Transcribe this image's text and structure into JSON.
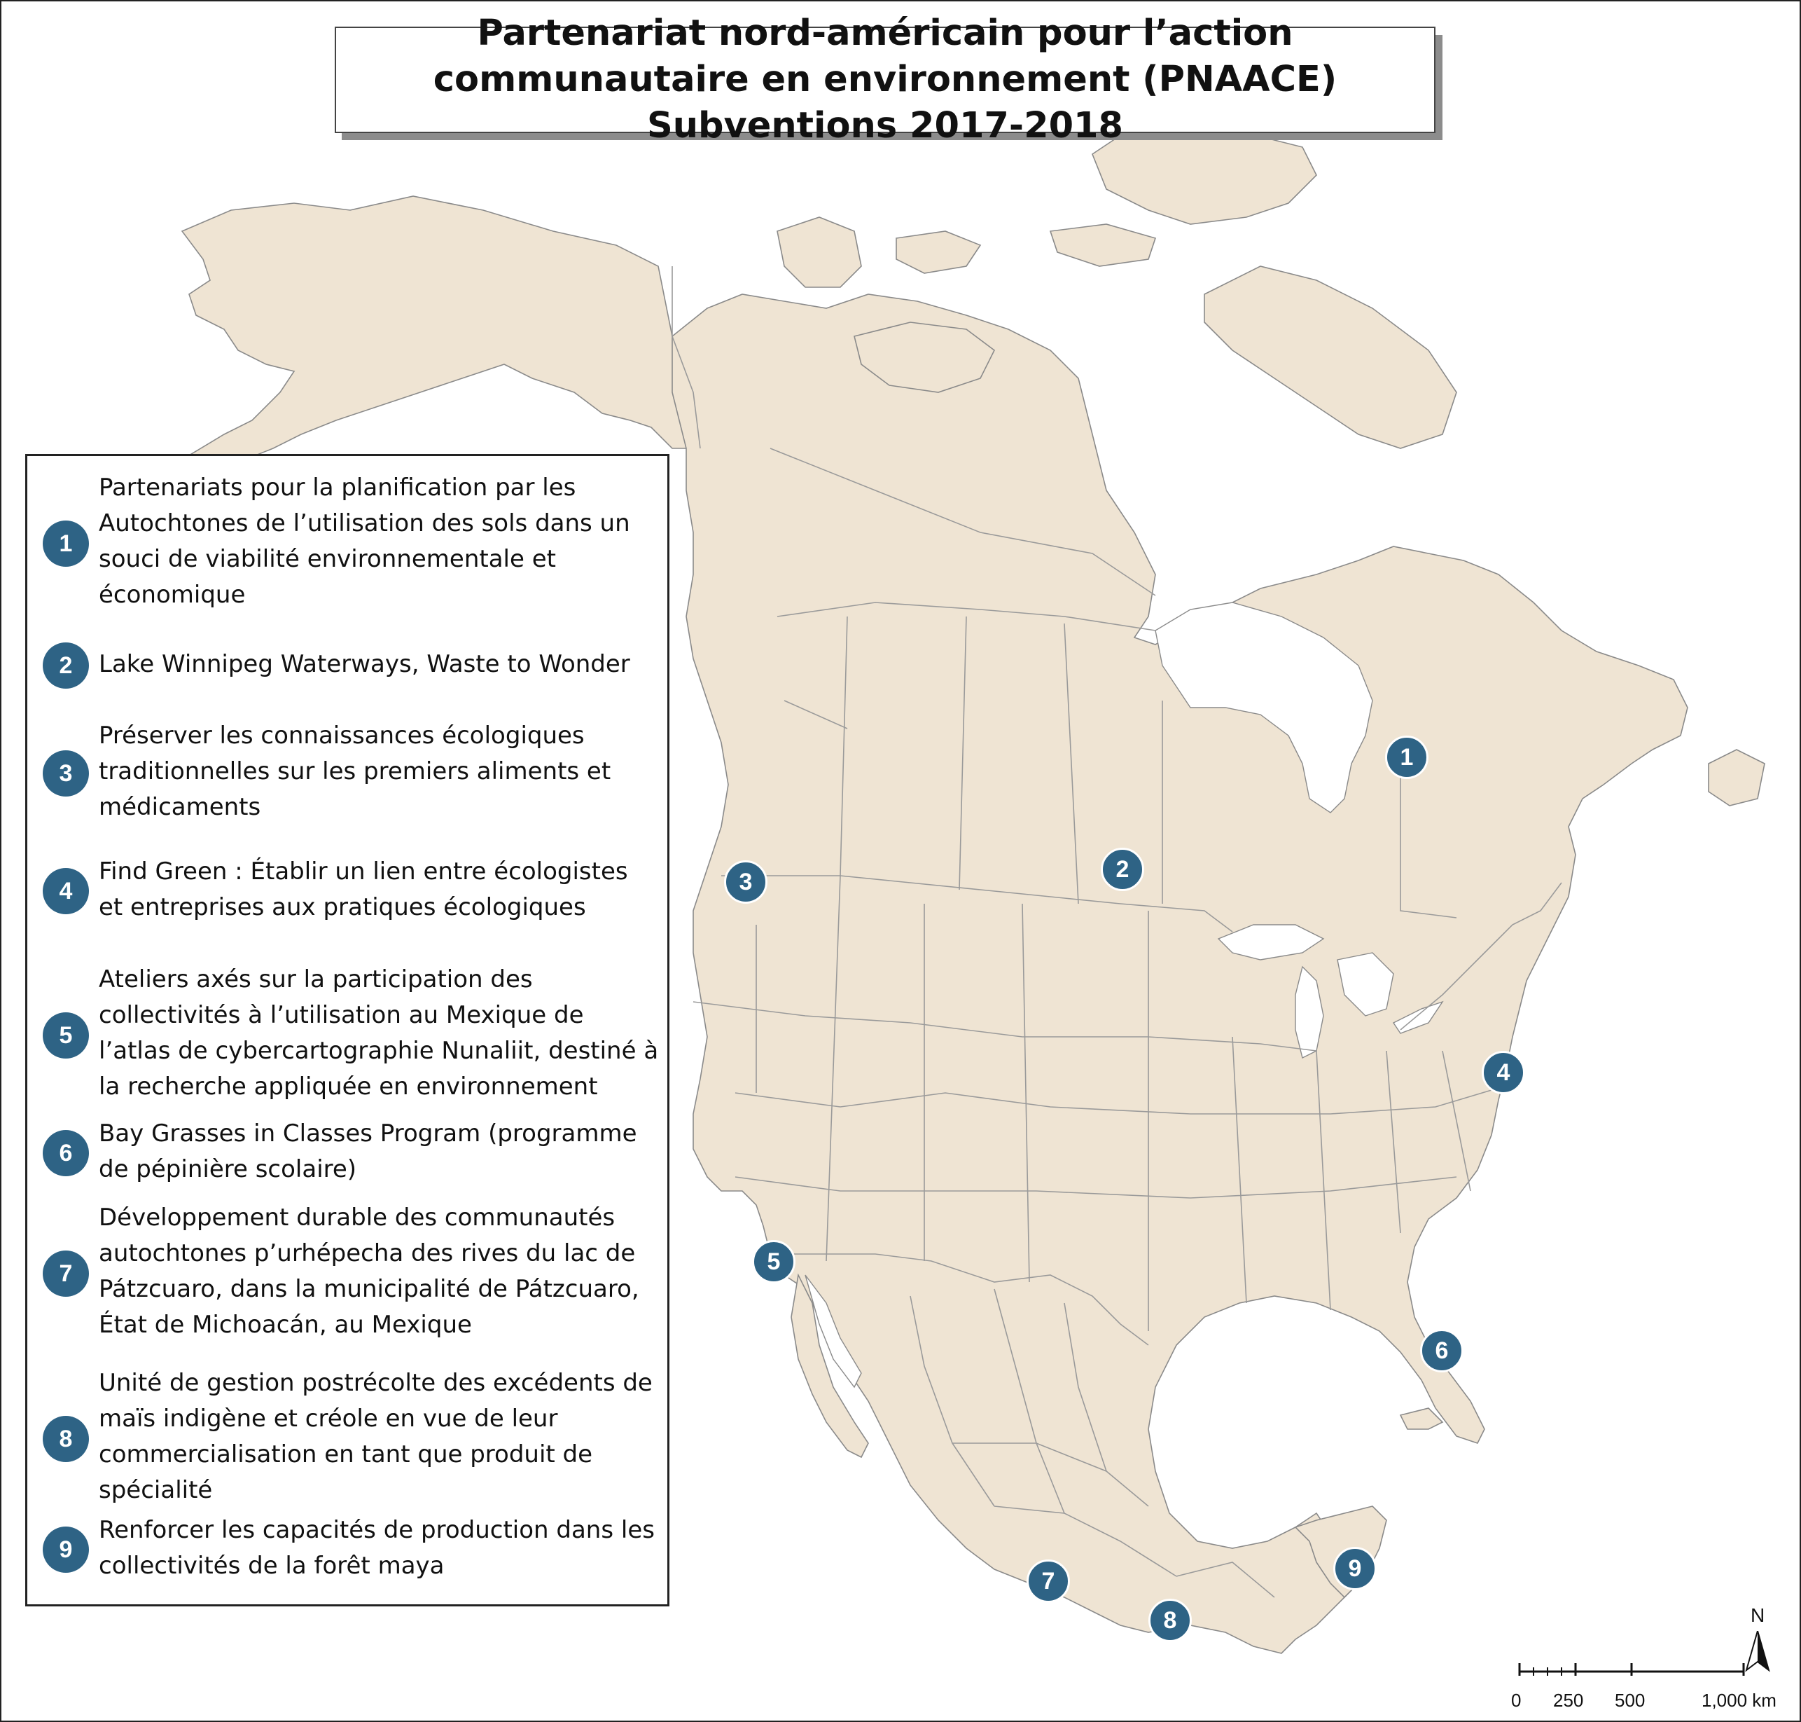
{
  "title": "Partenariat nord-américain pour l’action communautaire en environnement (PNAACE) Subventions 2017-2018",
  "colors": {
    "land": "#efe4d3",
    "marker": "#2e6385",
    "border": "#9a9a9a"
  },
  "legend": [
    {
      "num": "1",
      "text": "Partenariats pour la planification par les Autochtones de l’utilisation des sols dans un souci de viabilité environnementale et économique"
    },
    {
      "num": "2",
      "text": "Lake Winnipeg Waterways, Waste to Wonder"
    },
    {
      "num": "3",
      "text": "Préserver les connaissances écologiques traditionnelles sur les premiers aliments et médicaments"
    },
    {
      "num": "4",
      "text": "Find Green : Établir un lien entre écologistes et entreprises aux pratiques écologiques"
    },
    {
      "num": "5",
      "text": "Ateliers axés sur la participation des collectivités à l’utilisation au Mexique de l’atlas de cybercartographie Nunaliit, destiné à la recherche appliquée en environnement"
    },
    {
      "num": "6",
      "text": "Bay Grasses in Classes Program (programme de pépinière scolaire)"
    },
    {
      "num": "7",
      "text": "Développement durable des communautés autochtones p’urhépecha des rives du lac de Pátzcuaro, dans la municipalité de Pátzcuaro, État de Michoacán, au Mexique"
    },
    {
      "num": "8",
      "text": "Unité de gestion postrécolte des excédents de maïs indigène et créole en vue de leur commercialisation en tant que produit de spécialité"
    },
    {
      "num": "9",
      "text": "Renforcer les capacités de production dans les collectivités de la forêt maya"
    }
  ],
  "markers": [
    "1",
    "2",
    "3",
    "4",
    "5",
    "6",
    "7",
    "8",
    "9"
  ],
  "north_label": "N",
  "scale": {
    "labels": [
      "0",
      "250",
      "500",
      "1,000 km"
    ]
  }
}
